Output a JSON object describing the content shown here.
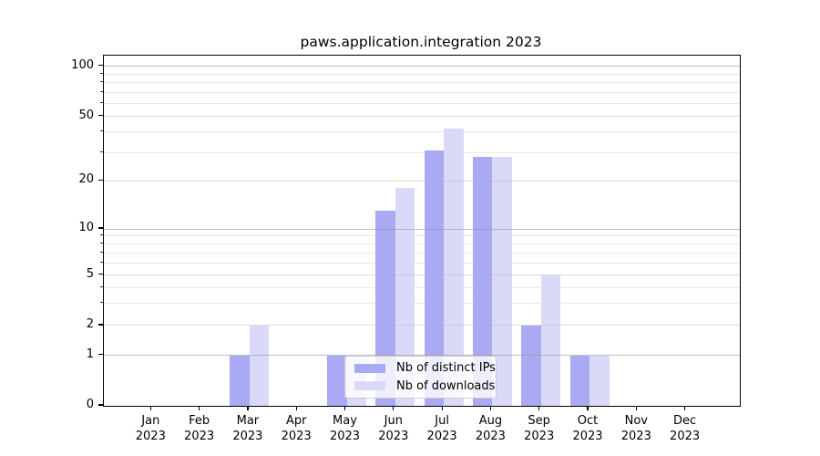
{
  "title": "paws.application.integration 2023",
  "legend": {
    "items": [
      {
        "label": "Nb of distinct IPs"
      },
      {
        "label": "Nb of downloads"
      }
    ]
  },
  "chart_data": {
    "type": "bar",
    "scale": "symlog",
    "title": "paws.application.integration 2023",
    "categories": [
      "Jan 2023",
      "Feb 2023",
      "Mar 2023",
      "Apr 2023",
      "May 2023",
      "Jun 2023",
      "Jul 2023",
      "Aug 2023",
      "Sep 2023",
      "Oct 2023",
      "Nov 2023",
      "Dec 2023"
    ],
    "series": [
      {
        "name": "Nb of distinct IPs",
        "color": "#a9a9f4",
        "values": [
          0,
          0,
          1,
          0,
          1,
          13,
          31,
          28,
          2,
          1,
          0,
          0
        ]
      },
      {
        "name": "Nb of downloads",
        "color": "#dadaf8",
        "values": [
          0,
          0,
          2,
          0,
          1,
          18,
          42,
          28,
          5,
          1,
          0,
          0
        ]
      }
    ],
    "y_ticks": [
      0,
      1,
      2,
      5,
      10,
      20,
      50,
      100
    ],
    "ylim": [
      0,
      116
    ],
    "grid": true,
    "legend_position": "lower center-left inside plot",
    "background": "#ffffff"
  }
}
